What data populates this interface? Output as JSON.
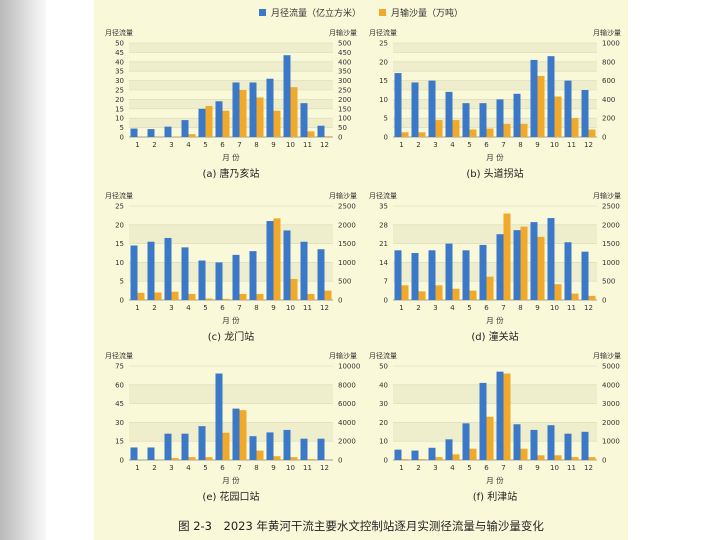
{
  "figure": {
    "caption": "图 2-3　2023 年黄河干流主要水文控制站逐月实测径流量与输沙量变化"
  },
  "legend": {
    "flow_label": "月径流量（亿立方米）",
    "sediment_label": "月输沙量（万吨）",
    "flow_color": "#3b78c8",
    "sediment_color": "#f0a92a"
  },
  "colors": {
    "page_bg": "#f9f8d9",
    "flow": "#3b78c8",
    "sediment": "#f0a92a",
    "grid_band": "#eeeecc"
  },
  "chart_data": [
    {
      "type": "bar",
      "title": "(a) 唐乃亥站",
      "xlabel": "月 份",
      "ylabel_left": "月径流量",
      "ylabel_right": "月输沙量",
      "categories": [
        "1",
        "2",
        "3",
        "4",
        "5",
        "6",
        "7",
        "8",
        "9",
        "10",
        "11",
        "12"
      ],
      "left_ticks": [
        0,
        5,
        10,
        15,
        20,
        25,
        30,
        35,
        40,
        45,
        50
      ],
      "right_ticks": [
        0,
        50,
        100,
        150,
        200,
        250,
        300,
        350,
        400,
        450,
        500
      ],
      "ylim_left": [
        0,
        50
      ],
      "ylim_right": [
        0,
        500
      ],
      "series": [
        {
          "name": "月径流量（亿立方米）",
          "axis": "left",
          "values": [
            4.5,
            4.2,
            5.5,
            9,
            15,
            19,
            29,
            29,
            31,
            43.5,
            18,
            6
          ]
        },
        {
          "name": "月输沙量（万吨）",
          "axis": "right",
          "values": [
            0,
            0,
            2,
            15,
            165,
            140,
            250,
            210,
            140,
            265,
            30,
            4
          ]
        }
      ]
    },
    {
      "type": "bar",
      "title": "(b) 头道拐站",
      "xlabel": "月 份",
      "ylabel_left": "月径流量",
      "ylabel_right": "月输沙量",
      "categories": [
        "1",
        "2",
        "3",
        "4",
        "5",
        "6",
        "7",
        "8",
        "9",
        "10",
        "11",
        "12"
      ],
      "left_ticks": [
        0,
        2.5,
        5,
        7.5,
        10,
        12.5,
        15,
        17.5,
        20,
        22.5,
        25
      ],
      "left_tick_labels": [
        "0",
        "",
        "5",
        "",
        "10",
        "",
        "15",
        "",
        "20",
        "",
        "25"
      ],
      "right_ticks": [
        0,
        100,
        200,
        300,
        400,
        500,
        600,
        700,
        800,
        900,
        1000
      ],
      "right_tick_labels": [
        "0",
        "",
        "200",
        "",
        "400",
        "",
        "600",
        "",
        "800",
        "",
        "1000"
      ],
      "ylim_left": [
        0,
        25
      ],
      "ylim_right": [
        0,
        1000
      ],
      "series": [
        {
          "name": "月径流量（亿立方米）",
          "axis": "left",
          "values": [
            17,
            14.5,
            15,
            12,
            9,
            9,
            10,
            11.5,
            20.5,
            21.5,
            15,
            12.5
          ]
        },
        {
          "name": "月输沙量（万吨）",
          "axis": "right",
          "values": [
            50,
            50,
            180,
            180,
            80,
            90,
            140,
            140,
            650,
            430,
            200,
            80
          ]
        }
      ]
    },
    {
      "type": "bar",
      "title": "(c) 龙门站",
      "xlabel": "月 份",
      "ylabel_left": "月径流量",
      "ylabel_right": "月输沙量",
      "categories": [
        "1",
        "2",
        "3",
        "4",
        "5",
        "6",
        "7",
        "8",
        "9",
        "10",
        "11",
        "12"
      ],
      "left_ticks": [
        0,
        5,
        10,
        15,
        20,
        25
      ],
      "right_ticks": [
        0,
        500,
        1000,
        1500,
        2000,
        2500
      ],
      "ylim_left": [
        0,
        25
      ],
      "ylim_right": [
        0,
        2500
      ],
      "series": [
        {
          "name": "月径流量（亿立方米）",
          "axis": "left",
          "values": [
            14.5,
            15.5,
            16.5,
            14,
            10.5,
            10,
            12,
            13,
            21,
            18.5,
            15.5,
            13.5
          ]
        },
        {
          "name": "月输沙量（万吨）",
          "axis": "right",
          "values": [
            190,
            200,
            220,
            160,
            40,
            30,
            160,
            160,
            2170,
            560,
            160,
            250
          ]
        }
      ]
    },
    {
      "type": "bar",
      "title": "(d) 潼关站",
      "xlabel": "月 份",
      "ylabel_left": "月径流量",
      "ylabel_right": "月输沙量",
      "categories": [
        "1",
        "2",
        "3",
        "4",
        "5",
        "6",
        "7",
        "8",
        "9",
        "10",
        "11",
        "12"
      ],
      "left_ticks": [
        0,
        7,
        14,
        21,
        28,
        35
      ],
      "right_ticks": [
        0,
        500,
        1000,
        1500,
        2000,
        2500
      ],
      "ylim_left": [
        0,
        35
      ],
      "ylim_right": [
        0,
        2500
      ],
      "series": [
        {
          "name": "月径流量（亿立方米）",
          "axis": "left",
          "values": [
            18.5,
            17.5,
            18.5,
            21,
            18.5,
            20.5,
            24.5,
            26,
            29,
            30.5,
            21.5,
            18
          ]
        },
        {
          "name": "月输沙量（万吨）",
          "axis": "right",
          "values": [
            390,
            230,
            390,
            300,
            250,
            620,
            2300,
            1950,
            1680,
            420,
            170,
            110
          ]
        }
      ]
    },
    {
      "type": "bar",
      "title": "(e) 花园口站",
      "xlabel": "月 份",
      "ylabel_left": "月径流量",
      "ylabel_right": "月输沙量",
      "categories": [
        "1",
        "2",
        "3",
        "4",
        "5",
        "6",
        "7",
        "8",
        "9",
        "10",
        "11",
        "12"
      ],
      "left_ticks": [
        0,
        15,
        30,
        45,
        60,
        75
      ],
      "right_ticks": [
        0,
        2000,
        4000,
        6000,
        8000,
        10000
      ],
      "ylim_left": [
        0,
        75
      ],
      "ylim_right": [
        0,
        10000
      ],
      "series": [
        {
          "name": "月径流量（亿立方米）",
          "axis": "left",
          "values": [
            10,
            10,
            21,
            21,
            27,
            69,
            41,
            19,
            22,
            24,
            17,
            17
          ]
        },
        {
          "name": "月输沙量（万吨）",
          "axis": "right",
          "values": [
            0,
            0,
            200,
            300,
            300,
            2900,
            5300,
            1000,
            400,
            300,
            100,
            0
          ]
        }
      ]
    },
    {
      "type": "bar",
      "title": "(f) 利津站",
      "xlabel": "月 份",
      "ylabel_left": "月径流量",
      "ylabel_right": "月输沙量",
      "categories": [
        "1",
        "2",
        "3",
        "4",
        "5",
        "6",
        "7",
        "8",
        "9",
        "10",
        "11",
        "12"
      ],
      "left_ticks": [
        0,
        10,
        20,
        30,
        40,
        50
      ],
      "right_ticks": [
        0,
        1000,
        2000,
        3000,
        4000,
        5000
      ],
      "ylim_left": [
        0,
        50
      ],
      "ylim_right": [
        0,
        5000
      ],
      "series": [
        {
          "name": "月径流量（亿立方米）",
          "axis": "left",
          "values": [
            5.5,
            5,
            6.5,
            11,
            19.5,
            41,
            47,
            19,
            16,
            18.5,
            14,
            15
          ]
        },
        {
          "name": "月输沙量（万吨）",
          "axis": "right",
          "values": [
            50,
            50,
            150,
            300,
            600,
            2300,
            4600,
            600,
            250,
            250,
            150,
            150
          ]
        }
      ]
    }
  ]
}
